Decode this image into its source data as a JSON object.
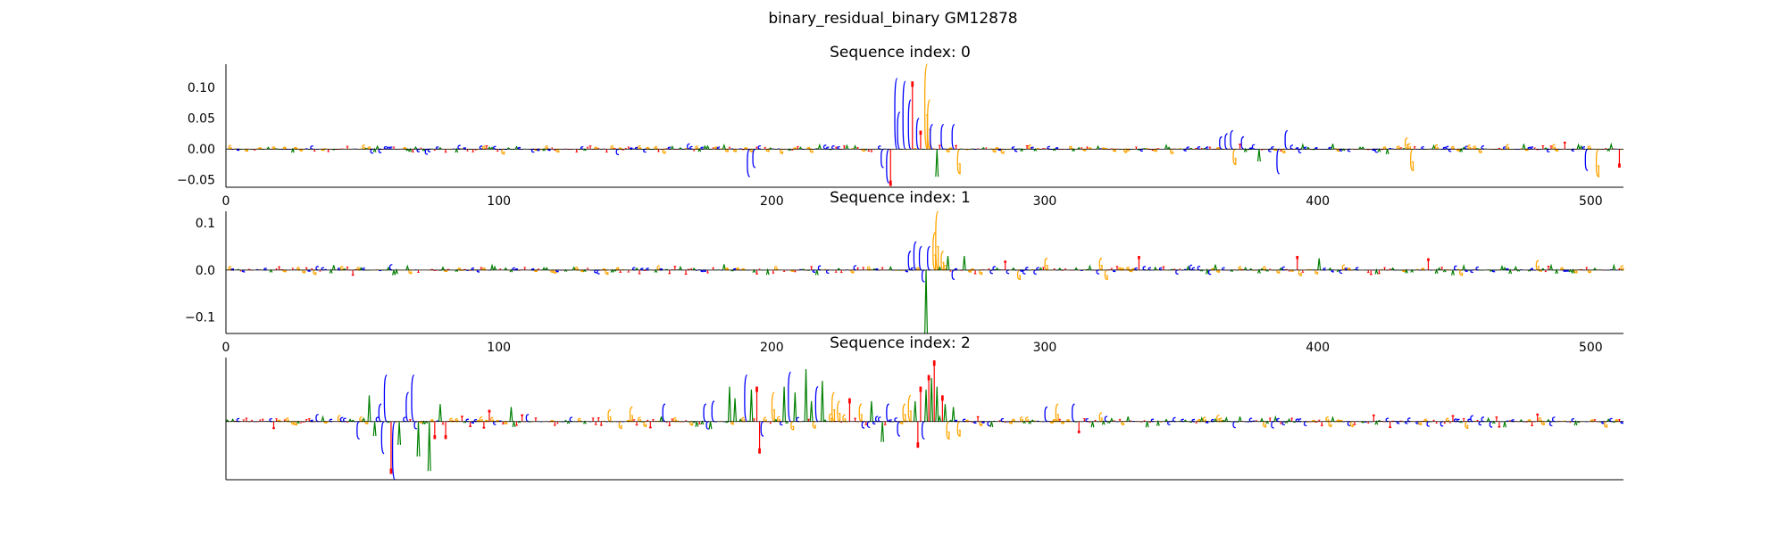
{
  "figure": {
    "title": "binary_residual_binary GM12878"
  },
  "colors": {
    "A": "#008000",
    "C": "#0000ff",
    "G": "#ffa500",
    "T": "#ff0000",
    "axis": "#000000"
  },
  "chart_data": [
    {
      "type": "sequence-logo",
      "title": "Sequence index: 0",
      "xlim": [
        0,
        512
      ],
      "xticks": [
        0,
        100,
        200,
        300,
        400,
        500
      ],
      "ylim": [
        -0.062,
        0.138
      ],
      "yticks": [
        0.1,
        0.05,
        0.0,
        -0.05
      ],
      "ytick_labels": [
        "0.10",
        "0.05",
        "0.00",
        "−0.05"
      ],
      "base_amplitude": 0.006,
      "seed": 11,
      "peaks": [
        {
          "x": 191,
          "value": -0.045,
          "base": "C"
        },
        {
          "x": 193,
          "value": -0.03,
          "base": "C"
        },
        {
          "x": 240,
          "value": -0.03,
          "base": "C"
        },
        {
          "x": 242,
          "value": -0.055,
          "base": "C"
        },
        {
          "x": 243,
          "value": -0.06,
          "base": "T"
        },
        {
          "x": 245,
          "value": 0.115,
          "base": "C"
        },
        {
          "x": 246,
          "value": 0.06,
          "base": "C"
        },
        {
          "x": 248,
          "value": 0.11,
          "base": "C"
        },
        {
          "x": 250,
          "value": 0.08,
          "base": "C"
        },
        {
          "x": 251,
          "value": 0.11,
          "base": "T"
        },
        {
          "x": 253,
          "value": 0.05,
          "base": "C"
        },
        {
          "x": 254,
          "value": 0.03,
          "base": "T"
        },
        {
          "x": 256,
          "value": 0.138,
          "base": "G"
        },
        {
          "x": 257,
          "value": 0.08,
          "base": "G"
        },
        {
          "x": 258,
          "value": 0.04,
          "base": "C"
        },
        {
          "x": 260,
          "value": -0.045,
          "base": "A"
        },
        {
          "x": 262,
          "value": 0.04,
          "base": "C"
        },
        {
          "x": 266,
          "value": 0.04,
          "base": "C"
        },
        {
          "x": 268,
          "value": -0.04,
          "base": "G"
        },
        {
          "x": 364,
          "value": 0.02,
          "base": "C"
        },
        {
          "x": 366,
          "value": 0.025,
          "base": "C"
        },
        {
          "x": 368,
          "value": 0.03,
          "base": "C"
        },
        {
          "x": 369,
          "value": -0.025,
          "base": "G"
        },
        {
          "x": 372,
          "value": 0.02,
          "base": "C"
        },
        {
          "x": 378,
          "value": -0.02,
          "base": "A"
        },
        {
          "x": 385,
          "value": -0.04,
          "base": "C"
        },
        {
          "x": 388,
          "value": 0.03,
          "base": "C"
        },
        {
          "x": 432,
          "value": 0.018,
          "base": "G"
        },
        {
          "x": 434,
          "value": -0.035,
          "base": "G"
        },
        {
          "x": 490,
          "value": 0.012,
          "base": "T"
        },
        {
          "x": 498,
          "value": -0.035,
          "base": "C"
        },
        {
          "x": 502,
          "value": -0.045,
          "base": "G"
        },
        {
          "x": 510,
          "value": -0.03,
          "base": "T"
        }
      ]
    },
    {
      "type": "sequence-logo",
      "title": "Sequence index: 1",
      "xlim": [
        0,
        512
      ],
      "xticks": [
        0,
        100,
        200,
        300,
        400,
        500
      ],
      "ylim": [
        -0.135,
        0.125
      ],
      "yticks": [
        0.1,
        0.0,
        -0.1
      ],
      "ytick_labels": [
        "0.1",
        "0.0",
        "−0.1"
      ],
      "base_amplitude": 0.008,
      "seed": 23,
      "peaks": [
        {
          "x": 250,
          "value": 0.04,
          "base": "C"
        },
        {
          "x": 252,
          "value": 0.06,
          "base": "C"
        },
        {
          "x": 254,
          "value": 0.05,
          "base": "C"
        },
        {
          "x": 255,
          "value": -0.025,
          "base": "C"
        },
        {
          "x": 256,
          "value": -0.135,
          "base": "A"
        },
        {
          "x": 257,
          "value": 0.05,
          "base": "C"
        },
        {
          "x": 259,
          "value": 0.08,
          "base": "G"
        },
        {
          "x": 260,
          "value": 0.125,
          "base": "G"
        },
        {
          "x": 262,
          "value": 0.04,
          "base": "G"
        },
        {
          "x": 264,
          "value": 0.03,
          "base": "A"
        },
        {
          "x": 266,
          "value": -0.02,
          "base": "C"
        },
        {
          "x": 270,
          "value": 0.03,
          "base": "A"
        },
        {
          "x": 285,
          "value": 0.02,
          "base": "T"
        },
        {
          "x": 290,
          "value": -0.02,
          "base": "G"
        },
        {
          "x": 300,
          "value": 0.025,
          "base": "G"
        },
        {
          "x": 320,
          "value": 0.025,
          "base": "G"
        },
        {
          "x": 322,
          "value": -0.02,
          "base": "G"
        },
        {
          "x": 334,
          "value": 0.03,
          "base": "T"
        },
        {
          "x": 392,
          "value": 0.03,
          "base": "T"
        },
        {
          "x": 400,
          "value": 0.025,
          "base": "A"
        },
        {
          "x": 440,
          "value": 0.025,
          "base": "T"
        },
        {
          "x": 480,
          "value": 0.02,
          "base": "G"
        }
      ]
    },
    {
      "type": "sequence-logo",
      "title": "Sequence index: 2",
      "xlim": [
        0,
        512
      ],
      "xticks": [],
      "ylim": [
        -1.0,
        1.1
      ],
      "yticks": [],
      "ytick_labels": [],
      "base_amplitude": 0.1,
      "seed": 37,
      "peaks": [
        {
          "x": 48,
          "value": -0.3,
          "base": "C"
        },
        {
          "x": 52,
          "value": 0.45,
          "base": "A"
        },
        {
          "x": 54,
          "value": -0.25,
          "base": "A"
        },
        {
          "x": 56,
          "value": 0.3,
          "base": "C"
        },
        {
          "x": 57,
          "value": -0.55,
          "base": "C"
        },
        {
          "x": 58,
          "value": 0.8,
          "base": "C"
        },
        {
          "x": 60,
          "value": -0.9,
          "base": "T"
        },
        {
          "x": 61,
          "value": -1.0,
          "base": "C"
        },
        {
          "x": 63,
          "value": -0.4,
          "base": "A"
        },
        {
          "x": 66,
          "value": 0.5,
          "base": "C"
        },
        {
          "x": 68,
          "value": 0.8,
          "base": "C"
        },
        {
          "x": 70,
          "value": -0.6,
          "base": "A"
        },
        {
          "x": 74,
          "value": -0.85,
          "base": "A"
        },
        {
          "x": 76,
          "value": -0.3,
          "base": "T"
        },
        {
          "x": 78,
          "value": 0.3,
          "base": "A"
        },
        {
          "x": 80,
          "value": -0.3,
          "base": "T"
        },
        {
          "x": 96,
          "value": 0.2,
          "base": "T"
        },
        {
          "x": 104,
          "value": 0.25,
          "base": "A"
        },
        {
          "x": 140,
          "value": 0.2,
          "base": "G"
        },
        {
          "x": 148,
          "value": 0.25,
          "base": "G"
        },
        {
          "x": 160,
          "value": 0.3,
          "base": "C"
        },
        {
          "x": 175,
          "value": 0.3,
          "base": "C"
        },
        {
          "x": 178,
          "value": 0.35,
          "base": "C"
        },
        {
          "x": 184,
          "value": 0.6,
          "base": "A"
        },
        {
          "x": 186,
          "value": 0.4,
          "base": "A"
        },
        {
          "x": 190,
          "value": 0.8,
          "base": "C"
        },
        {
          "x": 192,
          "value": 0.55,
          "base": "A"
        },
        {
          "x": 194,
          "value": 0.6,
          "base": "T"
        },
        {
          "x": 195,
          "value": -0.55,
          "base": "T"
        },
        {
          "x": 196,
          "value": -0.25,
          "base": "C"
        },
        {
          "x": 200,
          "value": 0.5,
          "base": "G"
        },
        {
          "x": 204,
          "value": 0.6,
          "base": "A"
        },
        {
          "x": 206,
          "value": 0.85,
          "base": "C"
        },
        {
          "x": 208,
          "value": 0.5,
          "base": "A"
        },
        {
          "x": 212,
          "value": 0.9,
          "base": "A"
        },
        {
          "x": 214,
          "value": 0.35,
          "base": "A"
        },
        {
          "x": 216,
          "value": 0.6,
          "base": "C"
        },
        {
          "x": 218,
          "value": 0.7,
          "base": "A"
        },
        {
          "x": 222,
          "value": 0.5,
          "base": "G"
        },
        {
          "x": 224,
          "value": 0.35,
          "base": "G"
        },
        {
          "x": 228,
          "value": 0.4,
          "base": "T"
        },
        {
          "x": 232,
          "value": 0.3,
          "base": "G"
        },
        {
          "x": 236,
          "value": 0.35,
          "base": "A"
        },
        {
          "x": 240,
          "value": -0.35,
          "base": "A"
        },
        {
          "x": 242,
          "value": 0.3,
          "base": "C"
        },
        {
          "x": 246,
          "value": -0.25,
          "base": "C"
        },
        {
          "x": 248,
          "value": 0.3,
          "base": "G"
        },
        {
          "x": 250,
          "value": 0.45,
          "base": "G"
        },
        {
          "x": 252,
          "value": 0.35,
          "base": "A"
        },
        {
          "x": 253,
          "value": -0.45,
          "base": "T"
        },
        {
          "x": 254,
          "value": 0.6,
          "base": "T"
        },
        {
          "x": 255,
          "value": -0.3,
          "base": "C"
        },
        {
          "x": 256,
          "value": 0.55,
          "base": "A"
        },
        {
          "x": 257,
          "value": 0.8,
          "base": "T"
        },
        {
          "x": 258,
          "value": 0.75,
          "base": "A"
        },
        {
          "x": 259,
          "value": 1.05,
          "base": "T"
        },
        {
          "x": 260,
          "value": 0.6,
          "base": "A"
        },
        {
          "x": 262,
          "value": 0.45,
          "base": "T"
        },
        {
          "x": 263,
          "value": 0.3,
          "base": "A"
        },
        {
          "x": 264,
          "value": -0.3,
          "base": "G"
        },
        {
          "x": 266,
          "value": 0.25,
          "base": "A"
        },
        {
          "x": 268,
          "value": -0.25,
          "base": "G"
        },
        {
          "x": 300,
          "value": 0.25,
          "base": "C"
        },
        {
          "x": 304,
          "value": 0.3,
          "base": "G"
        },
        {
          "x": 310,
          "value": 0.3,
          "base": "C"
        },
        {
          "x": 312,
          "value": -0.2,
          "base": "T"
        },
        {
          "x": 320,
          "value": 0.15,
          "base": "G"
        }
      ]
    }
  ]
}
